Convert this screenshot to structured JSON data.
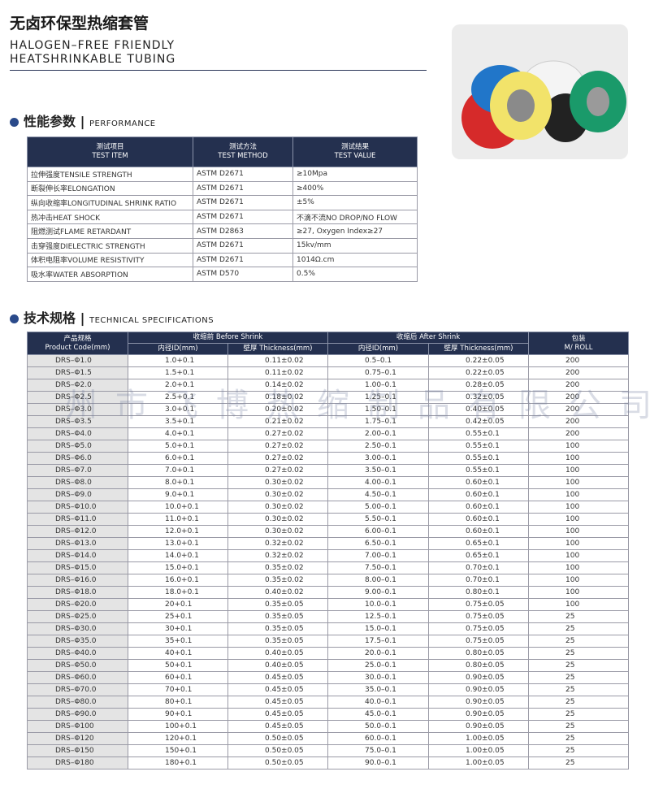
{
  "header": {
    "title": "无卤环保型热缩套管",
    "subtitle_lines": [
      "HALOGEN–FREE FRIENDLY",
      "HEATSHRINKABLE TUBING"
    ]
  },
  "performance": {
    "title_cn": "性能参数",
    "title_en": "PERFORMANCE",
    "columns": [
      [
        "测试项目",
        "TEST ITEM"
      ],
      [
        "测试方法",
        "TEST METHOD"
      ],
      [
        "测试结果",
        "TEST VALUE"
      ]
    ],
    "rows": [
      [
        "拉伸强度TENSILE STRENGTH",
        "ASTM D2671",
        "≥10Mpa"
      ],
      [
        "断裂伸长率ELONGATION",
        "ASTM D2671",
        "≥400%"
      ],
      [
        "纵向收缩率LONGITUDINAL SHRINK RATIO",
        "ASTM D2671",
        "±5%"
      ],
      [
        "热冲击HEAT SHOCK",
        "ASTM D2671",
        "不滴不流NO DROP/NO FLOW"
      ],
      [
        "阻燃测试FLAME RETARDANT",
        "ASTM D2863",
        "≥27, Oxygen Index≥27"
      ],
      [
        "击穿强度DIELECTRIC STRENGTH",
        "ASTM D2671",
        "15kv/mm"
      ],
      [
        "体积电阻率VOLUME RESISTIVITY",
        "ASTM D2671",
        "1014Ω.cm"
      ],
      [
        "吸水率WATER ABSORPTION",
        "ASTM D570",
        "0.5%"
      ]
    ]
  },
  "specifications": {
    "title_cn": "技术规格",
    "title_en": "TECHNICAL SPECIFICATIONS",
    "code_header": [
      "产品规格",
      "Product Code(mm)"
    ],
    "before_header": "收缩前 Before Shrink",
    "after_header": "收缩后 After Shrink",
    "pack_header": [
      "包装",
      "M/ ROLL"
    ],
    "sub_headers": [
      "内径ID(mm)",
      "壁厚 Thickness(mm)",
      "内径ID(mm)",
      "壁厚 Thickness(mm)"
    ],
    "watermark": "州市飞博热缩制品有限公司",
    "rows": [
      [
        "DRS–Φ1.0",
        "1.0+0.1",
        "0.11±0.02",
        "0.5–0.1",
        "0.22±0.05",
        "200"
      ],
      [
        "DRS–Φ1.5",
        "1.5+0.1",
        "0.11±0.02",
        "0.75–0.1",
        "0.22±0.05",
        "200"
      ],
      [
        "DRS–Φ2.0",
        "2.0+0.1",
        "0.14±0.02",
        "1.00–0.1",
        "0.28±0.05",
        "200"
      ],
      [
        "DRS–Φ2.5",
        "2.5+0.1",
        "0.18±0.02",
        "1.25–0.1",
        "0.32±0.05",
        "200"
      ],
      [
        "DRS–Φ3.0",
        "3.0+0.1",
        "0.20±0.02",
        "1.50–0.1",
        "0.40±0.05",
        "200"
      ],
      [
        "DRS–Φ3.5",
        "3.5+0.1",
        "0.21±0.02",
        "1.75–0.1",
        "0.42±0.05",
        "200"
      ],
      [
        "DRS–Φ4.0",
        "4.0+0.1",
        "0.27±0.02",
        "2.00–0.1",
        "0.55±0.1",
        "200"
      ],
      [
        "DRS–Φ5.0",
        "5.0+0.1",
        "0.27±0.02",
        "2.50–0.1",
        "0.55±0.1",
        "100"
      ],
      [
        "DRS–Φ6.0",
        "6.0+0.1",
        "0.27±0.02",
        "3.00–0.1",
        "0.55±0.1",
        "100"
      ],
      [
        "DRS–Φ7.0",
        "7.0+0.1",
        "0.27±0.02",
        "3.50–0.1",
        "0.55±0.1",
        "100"
      ],
      [
        "DRS–Φ8.0",
        "8.0+0.1",
        "0.30±0.02",
        "4.00–0.1",
        "0.60±0.1",
        "100"
      ],
      [
        "DRS–Φ9.0",
        "9.0+0.1",
        "0.30±0.02",
        "4.50–0.1",
        "0.60±0.1",
        "100"
      ],
      [
        "DRS–Φ10.0",
        "10.0+0.1",
        "0.30±0.02",
        "5.00–0.1",
        "0.60±0.1",
        "100"
      ],
      [
        "DRS–Φ11.0",
        "11.0+0.1",
        "0.30±0.02",
        "5.50–0.1",
        "0.60±0.1",
        "100"
      ],
      [
        "DRS–Φ12.0",
        "12.0+0.1",
        "0.30±0.02",
        "6.00–0.1",
        "0.60±0.1",
        "100"
      ],
      [
        "DRS–Φ13.0",
        "13.0+0.1",
        "0.32±0.02",
        "6.50–0.1",
        "0.65±0.1",
        "100"
      ],
      [
        "DRS–Φ14.0",
        "14.0+0.1",
        "0.32±0.02",
        "7.00–0.1",
        "0.65±0.1",
        "100"
      ],
      [
        "DRS–Φ15.0",
        "15.0+0.1",
        "0.35±0.02",
        "7.50–0.1",
        "0.70±0.1",
        "100"
      ],
      [
        "DRS–Φ16.0",
        "16.0+0.1",
        "0.35±0.02",
        "8.00–0.1",
        "0.70±0.1",
        "100"
      ],
      [
        "DRS–Φ18.0",
        "18.0+0.1",
        "0.40±0.02",
        "9.00–0.1",
        "0.80±0.1",
        "100"
      ],
      [
        "DRS–Φ20.0",
        "20+0.1",
        "0.35±0.05",
        "10.0–0.1",
        "0.75±0.05",
        "100"
      ],
      [
        "DRS–Φ25.0",
        "25+0.1",
        "0.35±0.05",
        "12.5–0.1",
        "0.75±0.05",
        "25"
      ],
      [
        "DRS–Φ30.0",
        "30+0.1",
        "0.35±0.05",
        "15.0–0.1",
        "0.75±0.05",
        "25"
      ],
      [
        "DRS–Φ35.0",
        "35+0.1",
        "0.35±0.05",
        "17.5–0.1",
        "0.75±0.05",
        "25"
      ],
      [
        "DRS–Φ40.0",
        "40+0.1",
        "0.40±0.05",
        "20.0–0.1",
        "0.80±0.05",
        "25"
      ],
      [
        "DRS–Φ50.0",
        "50+0.1",
        "0.40±0.05",
        "25.0–0.1",
        "0.80±0.05",
        "25"
      ],
      [
        "DRS–Φ60.0",
        "60+0.1",
        "0.45±0.05",
        "30.0–0.1",
        "0.90±0.05",
        "25"
      ],
      [
        "DRS–Φ70.0",
        "70+0.1",
        "0.45±0.05",
        "35.0–0.1",
        "0.90±0.05",
        "25"
      ],
      [
        "DRS–Φ80.0",
        "80+0.1",
        "0.45±0.05",
        "40.0–0.1",
        "0.90±0.05",
        "25"
      ],
      [
        "DRS–Φ90.0",
        "90+0.1",
        "0.45±0.05",
        "45.0–0.1",
        "0.90±0.05",
        "25"
      ],
      [
        "DRS–Φ100",
        "100+0.1",
        "0.45±0.05",
        "50.0–0.1",
        "0.90±0.05",
        "25"
      ],
      [
        "DRS–Φ120",
        "120+0.1",
        "0.50±0.05",
        "60.0–0.1",
        "1.00±0.05",
        "25"
      ],
      [
        "DRS–Φ150",
        "150+0.1",
        "0.50±0.05",
        "75.0–0.1",
        "1.00±0.05",
        "25"
      ],
      [
        "DRS–Φ180",
        "180+0.1",
        "0.50±0.05",
        "90.0–0.1",
        "1.00±0.05",
        "25"
      ]
    ]
  }
}
